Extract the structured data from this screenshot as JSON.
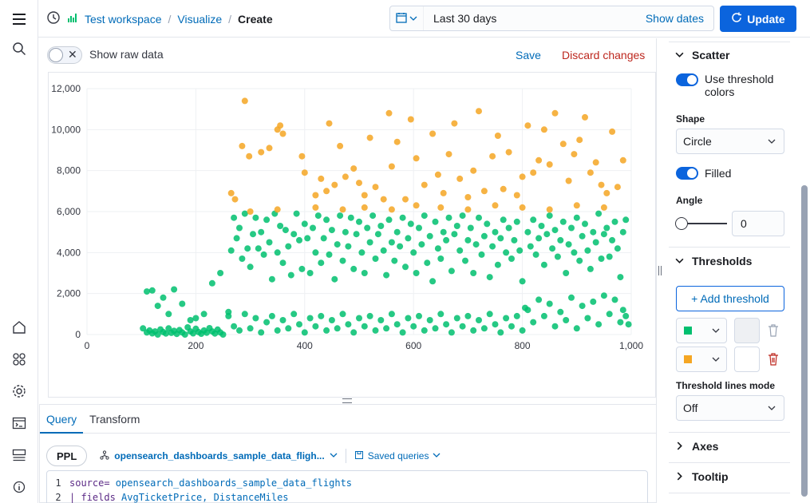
{
  "header": {
    "breadcrumbs": [
      {
        "label": "Test workspace"
      },
      {
        "label": "Visualize"
      },
      {
        "label": "Create"
      }
    ],
    "date_range": "Last 30 days",
    "show_dates_label": "Show dates",
    "update_label": "Update"
  },
  "toolbar": {
    "show_raw_data_label": "Show raw data",
    "save_label": "Save",
    "discard_label": "Discard changes"
  },
  "query": {
    "tabs": [
      {
        "label": "Query"
      },
      {
        "label": "Transform"
      }
    ],
    "language": "PPL",
    "dataset": "opensearch_dashboards_sample_data_fligh...",
    "saved_queries_label": "Saved queries",
    "lines": [
      {
        "num": "1",
        "keyword": "source=",
        "value": " opensearch_dashboards_sample_data_flights"
      },
      {
        "num": "2",
        "keyword": "| fields",
        "value": " AvgTicketPrice, DistanceMiles"
      }
    ]
  },
  "settings": {
    "scatter_title": "Scatter",
    "use_threshold_colors_label": "Use threshold colors",
    "shape_label": "Shape",
    "shape_value": "Circle",
    "filled_label": "Filled",
    "angle_label": "Angle",
    "angle_value": "0",
    "thresholds_title": "Thresholds",
    "add_threshold_label": "+ Add threshold",
    "threshold_lines_mode_label": "Threshold lines mode",
    "threshold_lines_mode_value": "Off",
    "axes_title": "Axes",
    "tooltip_title": "Tooltip",
    "threshold_colors": [
      "#00BF6F",
      "#F5A623"
    ]
  },
  "chart_data": {
    "type": "scatter",
    "xlim": [
      0,
      1000
    ],
    "ylim": [
      0,
      12000
    ],
    "x_ticks": [
      {
        "value": 0,
        "label": "0"
      },
      {
        "value": 200,
        "label": "200"
      },
      {
        "value": 400,
        "label": "400"
      },
      {
        "value": 600,
        "label": "600"
      },
      {
        "value": 800,
        "label": "800"
      },
      {
        "value": 1000,
        "label": "1,000"
      }
    ],
    "y_ticks": [
      {
        "value": 0,
        "label": "0"
      },
      {
        "value": 2000,
        "label": "2,000"
      },
      {
        "value": 4000,
        "label": "4,000"
      },
      {
        "value": 6000,
        "label": "6,000"
      },
      {
        "value": 8000,
        "label": "8,000"
      },
      {
        "value": 10000,
        "label": "10,000"
      },
      {
        "value": 12000,
        "label": "12,000"
      }
    ],
    "grid": true,
    "threshold": 6000,
    "colors": {
      "below": "#00BF6F",
      "above": "#F5A623"
    },
    "points": [
      [
        103,
        300
      ],
      [
        110,
        100
      ],
      [
        115,
        200
      ],
      [
        120,
        60
      ],
      [
        125,
        150
      ],
      [
        130,
        0
      ],
      [
        135,
        250
      ],
      [
        140,
        120
      ],
      [
        145,
        50
      ],
      [
        150,
        300
      ],
      [
        155,
        80
      ],
      [
        160,
        180
      ],
      [
        165,
        30
      ],
      [
        170,
        220
      ],
      [
        175,
        100
      ],
      [
        180,
        0
      ],
      [
        185,
        350
      ],
      [
        190,
        150
      ],
      [
        195,
        60
      ],
      [
        200,
        280
      ],
      [
        205,
        120
      ],
      [
        210,
        40
      ],
      [
        215,
        200
      ],
      [
        220,
        90
      ],
      [
        225,
        310
      ],
      [
        230,
        150
      ],
      [
        235,
        50
      ],
      [
        240,
        240
      ],
      [
        245,
        100
      ],
      [
        250,
        0
      ],
      [
        110,
        2100
      ],
      [
        120,
        2150
      ],
      [
        130,
        1400
      ],
      [
        140,
        1800
      ],
      [
        150,
        1000
      ],
      [
        160,
        2200
      ],
      [
        175,
        1500
      ],
      [
        190,
        700
      ],
      [
        200,
        800
      ],
      [
        215,
        1000
      ],
      [
        230,
        2500
      ],
      [
        245,
        3000
      ],
      [
        260,
        1100
      ],
      [
        265,
        4100
      ],
      [
        270,
        5700
      ],
      [
        275,
        4700
      ],
      [
        280,
        5200
      ],
      [
        285,
        3700
      ],
      [
        290,
        5900
      ],
      [
        295,
        4200
      ],
      [
        300,
        3300
      ],
      [
        305,
        4900
      ],
      [
        310,
        5700
      ],
      [
        315,
        4200
      ],
      [
        320,
        5000
      ],
      [
        325,
        3900
      ],
      [
        330,
        5600
      ],
      [
        335,
        4500
      ],
      [
        340,
        2700
      ],
      [
        345,
        5900
      ],
      [
        350,
        4000
      ],
      [
        355,
        5300
      ],
      [
        360,
        3500
      ],
      [
        365,
        5100
      ],
      [
        370,
        4300
      ],
      [
        375,
        2900
      ],
      [
        380,
        4900
      ],
      [
        385,
        5900
      ],
      [
        390,
        4600
      ],
      [
        395,
        3200
      ],
      [
        400,
        5400
      ],
      [
        405,
        4700
      ],
      [
        410,
        3000
      ],
      [
        415,
        5200
      ],
      [
        420,
        4000
      ],
      [
        425,
        5800
      ],
      [
        430,
        3500
      ],
      [
        435,
        4700
      ],
      [
        440,
        5600
      ],
      [
        445,
        3900
      ],
      [
        450,
        5100
      ],
      [
        455,
        2700
      ],
      [
        460,
        4400
      ],
      [
        465,
        5800
      ],
      [
        470,
        3600
      ],
      [
        475,
        5000
      ],
      [
        480,
        4300
      ],
      [
        485,
        5700
      ],
      [
        490,
        3200
      ],
      [
        495,
        4900
      ],
      [
        500,
        5500
      ],
      [
        505,
        4000
      ],
      [
        510,
        3000
      ],
      [
        515,
        5200
      ],
      [
        520,
        4500
      ],
      [
        525,
        5800
      ],
      [
        530,
        3700
      ],
      [
        535,
        4900
      ],
      [
        540,
        5300
      ],
      [
        545,
        4100
      ],
      [
        550,
        2900
      ],
      [
        555,
        5600
      ],
      [
        560,
        4500
      ],
      [
        565,
        3600
      ],
      [
        570,
        5000
      ],
      [
        575,
        4300
      ],
      [
        580,
        5700
      ],
      [
        585,
        3300
      ],
      [
        590,
        4700
      ],
      [
        595,
        5400
      ],
      [
        600,
        4000
      ],
      [
        605,
        3000
      ],
      [
        610,
        5200
      ],
      [
        615,
        4400
      ],
      [
        620,
        5800
      ],
      [
        625,
        3500
      ],
      [
        630,
        4800
      ],
      [
        635,
        2600
      ],
      [
        640,
        5500
      ],
      [
        645,
        4200
      ],
      [
        650,
        3700
      ],
      [
        655,
        5000
      ],
      [
        660,
        4600
      ],
      [
        665,
        5700
      ],
      [
        670,
        3100
      ],
      [
        675,
        4900
      ],
      [
        680,
        5300
      ],
      [
        685,
        4100
      ],
      [
        690,
        5800
      ],
      [
        695,
        3600
      ],
      [
        700,
        4600
      ],
      [
        705,
        5200
      ],
      [
        710,
        3000
      ],
      [
        715,
        4400
      ],
      [
        720,
        5700
      ],
      [
        725,
        3900
      ],
      [
        730,
        4800
      ],
      [
        735,
        5400
      ],
      [
        740,
        2800
      ],
      [
        745,
        4300
      ],
      [
        750,
        5000
      ],
      [
        755,
        3400
      ],
      [
        760,
        4700
      ],
      [
        765,
        5600
      ],
      [
        770,
        4000
      ],
      [
        775,
        5200
      ],
      [
        780,
        3700
      ],
      [
        785,
        4600
      ],
      [
        790,
        5500
      ],
      [
        795,
        4100
      ],
      [
        800,
        2600
      ],
      [
        805,
        1300
      ],
      [
        810,
        5000
      ],
      [
        815,
        4300
      ],
      [
        820,
        5600
      ],
      [
        825,
        3900
      ],
      [
        830,
        4700
      ],
      [
        835,
        5300
      ],
      [
        840,
        3400
      ],
      [
        845,
        4900
      ],
      [
        850,
        5800
      ],
      [
        855,
        4200
      ],
      [
        860,
        5100
      ],
      [
        865,
        3800
      ],
      [
        870,
        4600
      ],
      [
        875,
        5500
      ],
      [
        880,
        3000
      ],
      [
        885,
        4400
      ],
      [
        890,
        5200
      ],
      [
        895,
        4000
      ],
      [
        900,
        5700
      ],
      [
        905,
        3600
      ],
      [
        910,
        4800
      ],
      [
        915,
        5400
      ],
      [
        920,
        4100
      ],
      [
        925,
        3200
      ],
      [
        930,
        5000
      ],
      [
        935,
        4500
      ],
      [
        940,
        5900
      ],
      [
        945,
        3700
      ],
      [
        950,
        4900
      ],
      [
        955,
        5200
      ],
      [
        960,
        3800
      ],
      [
        965,
        4600
      ],
      [
        970,
        5500
      ],
      [
        975,
        4200
      ],
      [
        980,
        2800
      ],
      [
        985,
        5000
      ],
      [
        990,
        5600
      ],
      [
        260,
        900
      ],
      [
        270,
        400
      ],
      [
        280,
        200
      ],
      [
        290,
        1000
      ],
      [
        300,
        300
      ],
      [
        310,
        800
      ],
      [
        320,
        100
      ],
      [
        330,
        600
      ],
      [
        340,
        900
      ],
      [
        350,
        200
      ],
      [
        360,
        700
      ],
      [
        370,
        300
      ],
      [
        380,
        1000
      ],
      [
        390,
        500
      ],
      [
        400,
        100
      ],
      [
        410,
        800
      ],
      [
        420,
        400
      ],
      [
        430,
        900
      ],
      [
        440,
        200
      ],
      [
        450,
        700
      ],
      [
        460,
        300
      ],
      [
        470,
        1000
      ],
      [
        480,
        500
      ],
      [
        490,
        100
      ],
      [
        500,
        800
      ],
      [
        510,
        400
      ],
      [
        520,
        900
      ],
      [
        530,
        200
      ],
      [
        540,
        700
      ],
      [
        550,
        300
      ],
      [
        560,
        1000
      ],
      [
        570,
        500
      ],
      [
        580,
        100
      ],
      [
        590,
        800
      ],
      [
        600,
        400
      ],
      [
        610,
        900
      ],
      [
        620,
        200
      ],
      [
        630,
        700
      ],
      [
        640,
        300
      ],
      [
        650,
        1000
      ],
      [
        660,
        500
      ],
      [
        670,
        100
      ],
      [
        680,
        800
      ],
      [
        690,
        400
      ],
      [
        700,
        900
      ],
      [
        710,
        200
      ],
      [
        720,
        700
      ],
      [
        730,
        300
      ],
      [
        740,
        1000
      ],
      [
        750,
        500
      ],
      [
        760,
        100
      ],
      [
        770,
        800
      ],
      [
        780,
        400
      ],
      [
        790,
        900
      ],
      [
        800,
        200
      ],
      [
        810,
        1200
      ],
      [
        820,
        600
      ],
      [
        830,
        1700
      ],
      [
        840,
        900
      ],
      [
        850,
        1500
      ],
      [
        860,
        400
      ],
      [
        870,
        1100
      ],
      [
        880,
        700
      ],
      [
        890,
        1800
      ],
      [
        900,
        300
      ],
      [
        910,
        1400
      ],
      [
        920,
        800
      ],
      [
        930,
        1600
      ],
      [
        940,
        500
      ],
      [
        950,
        1900
      ],
      [
        960,
        1000
      ],
      [
        970,
        1700
      ],
      [
        980,
        600
      ],
      [
        985,
        1200
      ],
      [
        990,
        900
      ],
      [
        995,
        500
      ],
      [
        300,
        6000
      ],
      [
        350,
        6100
      ],
      [
        420,
        6200
      ],
      [
        470,
        6100
      ],
      [
        510,
        6200
      ],
      [
        560,
        6100
      ],
      [
        605,
        6300
      ],
      [
        650,
        6200
      ],
      [
        700,
        6100
      ],
      [
        750,
        6300
      ],
      [
        800,
        6200
      ],
      [
        850,
        6100
      ],
      [
        900,
        6300
      ],
      [
        950,
        6200
      ],
      [
        265,
        6900
      ],
      [
        272,
        6600
      ],
      [
        285,
        9200
      ],
      [
        290,
        11400
      ],
      [
        298,
        8700
      ],
      [
        320,
        8900
      ],
      [
        335,
        9100
      ],
      [
        350,
        10000
      ],
      [
        355,
        10200
      ],
      [
        360,
        9800
      ],
      [
        395,
        8700
      ],
      [
        400,
        7900
      ],
      [
        420,
        6800
      ],
      [
        430,
        7600
      ],
      [
        440,
        7000
      ],
      [
        445,
        10300
      ],
      [
        455,
        7300
      ],
      [
        465,
        9200
      ],
      [
        475,
        7700
      ],
      [
        490,
        8100
      ],
      [
        500,
        7400
      ],
      [
        510,
        6800
      ],
      [
        520,
        9600
      ],
      [
        530,
        7200
      ],
      [
        545,
        6600
      ],
      [
        555,
        10800
      ],
      [
        560,
        8200
      ],
      [
        570,
        9400
      ],
      [
        585,
        6600
      ],
      [
        595,
        10500
      ],
      [
        605,
        8600
      ],
      [
        620,
        7300
      ],
      [
        635,
        9800
      ],
      [
        645,
        7800
      ],
      [
        655,
        6900
      ],
      [
        665,
        8800
      ],
      [
        675,
        10300
      ],
      [
        685,
        7600
      ],
      [
        700,
        6700
      ],
      [
        710,
        8000
      ],
      [
        720,
        10900
      ],
      [
        730,
        7000
      ],
      [
        745,
        8700
      ],
      [
        755,
        9700
      ],
      [
        765,
        7100
      ],
      [
        775,
        8900
      ],
      [
        790,
        6800
      ],
      [
        800,
        7700
      ],
      [
        810,
        10200
      ],
      [
        820,
        7900
      ],
      [
        830,
        8500
      ],
      [
        840,
        10000
      ],
      [
        850,
        8300
      ],
      [
        860,
        10800
      ],
      [
        875,
        9300
      ],
      [
        885,
        7500
      ],
      [
        895,
        8800
      ],
      [
        905,
        9500
      ],
      [
        915,
        10600
      ],
      [
        925,
        7900
      ],
      [
        935,
        8400
      ],
      [
        945,
        7300
      ],
      [
        955,
        6900
      ],
      [
        965,
        9900
      ],
      [
        975,
        7200
      ],
      [
        985,
        8500
      ]
    ]
  }
}
